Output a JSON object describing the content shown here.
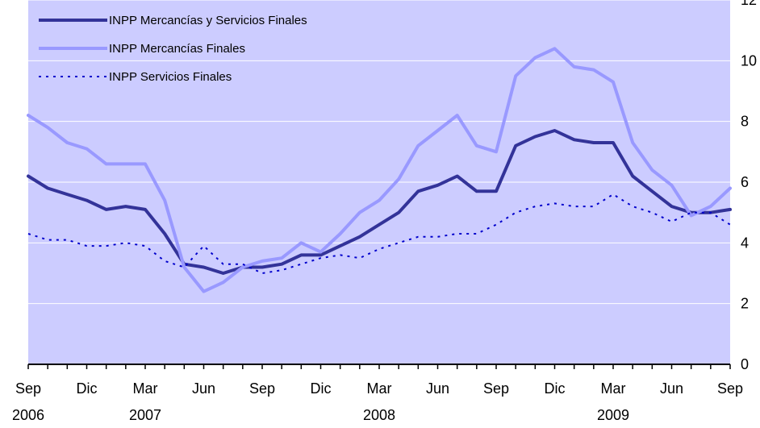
{
  "chart_data": {
    "type": "line",
    "x_tick_labels": [
      "Sep",
      "Dic",
      "Mar",
      "Jun",
      "Sep",
      "Dic",
      "Mar",
      "Jun",
      "Sep",
      "Dic",
      "Mar",
      "Jun",
      "Sep"
    ],
    "year_labels": [
      {
        "label": "2006",
        "tick_index": 0
      },
      {
        "label": "2007",
        "tick_index": 2
      },
      {
        "label": "2008",
        "tick_index": 6
      },
      {
        "label": "2009",
        "tick_index": 10
      }
    ],
    "y_tick_labels": [
      "0",
      "2",
      "4",
      "6",
      "8",
      "10",
      "12"
    ],
    "ylim": [
      0,
      12
    ],
    "y_axis_side": "right",
    "grid": true,
    "legend_placement": "top-left",
    "colors": {
      "plot_background": "#ccccff",
      "gridline": "#ffffff",
      "axis": "#000000"
    },
    "x_start_month": "2006-09",
    "series": [
      {
        "name": "INPP Mercancías y Servicios Finales",
        "color": "#333399",
        "style": "solid",
        "values": [
          6.2,
          5.8,
          5.6,
          5.4,
          5.1,
          5.2,
          5.1,
          4.3,
          3.3,
          3.2,
          3.0,
          3.2,
          3.2,
          3.3,
          3.6,
          3.6,
          3.9,
          4.2,
          4.6,
          5.0,
          5.7,
          5.9,
          6.2,
          5.7,
          5.7,
          7.2,
          7.5,
          7.7,
          7.4,
          7.3,
          7.3,
          6.2,
          5.7,
          5.2,
          5.0,
          5.0,
          5.1
        ]
      },
      {
        "name": "INPP Mercancías Finales",
        "color": "#9999ff",
        "style": "solid",
        "values": [
          8.2,
          7.8,
          7.3,
          7.1,
          6.6,
          6.6,
          6.6,
          5.4,
          3.2,
          2.4,
          2.7,
          3.2,
          3.4,
          3.5,
          4.0,
          3.7,
          4.3,
          5.0,
          5.4,
          6.1,
          7.2,
          7.7,
          8.2,
          7.2,
          7.0,
          9.5,
          10.1,
          10.4,
          9.8,
          9.7,
          9.3,
          7.3,
          6.4,
          5.9,
          4.9,
          5.2,
          5.8
        ]
      },
      {
        "name": "INPP Servicios Finales",
        "color": "#0000cc",
        "style": "dotted",
        "values": [
          4.3,
          4.1,
          4.1,
          3.9,
          3.9,
          4.0,
          3.9,
          3.4,
          3.2,
          3.9,
          3.3,
          3.3,
          3.0,
          3.1,
          3.3,
          3.5,
          3.6,
          3.5,
          3.8,
          4.0,
          4.2,
          4.2,
          4.3,
          4.3,
          4.6,
          5.0,
          5.2,
          5.3,
          5.2,
          5.2,
          5.6,
          5.2,
          5.0,
          4.7,
          5.0,
          5.0,
          4.6
        ]
      }
    ]
  }
}
